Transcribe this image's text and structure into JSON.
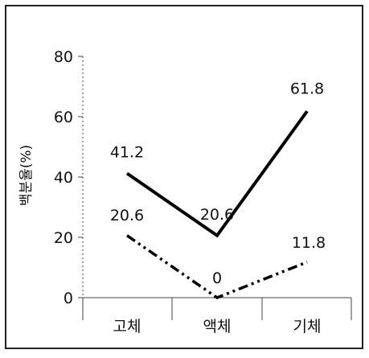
{
  "chart_data": {
    "type": "line",
    "title": "",
    "xlabel": "",
    "ylabel": "백분율(%)",
    "categories": [
      "고체",
      "액체",
      "기체"
    ],
    "ylim": [
      0,
      80
    ],
    "yticks": [
      0,
      20,
      40,
      60,
      80
    ],
    "grid": false,
    "legend": "none",
    "series": [
      {
        "style": "solid",
        "color": "#000000",
        "values": [
          41.2,
          20.6,
          61.8
        ],
        "labels": [
          "41.2",
          "20.6",
          "61.8"
        ]
      },
      {
        "style": "dash-dot-dot",
        "color": "#000000",
        "values": [
          20.6,
          0,
          11.8
        ],
        "labels": [
          "20.6",
          "0",
          "11.8"
        ]
      }
    ]
  }
}
